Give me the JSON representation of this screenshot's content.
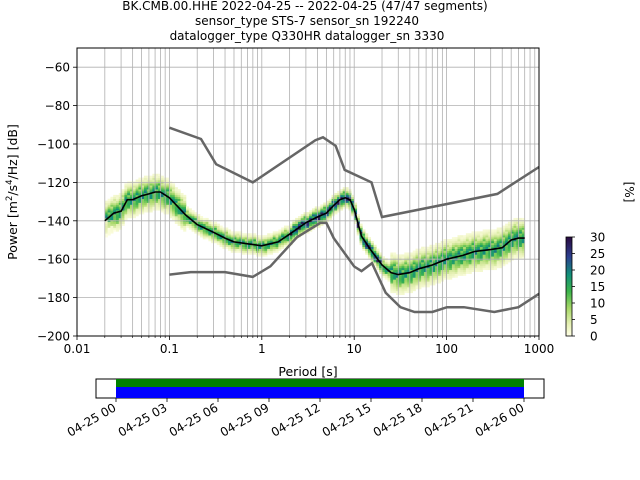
{
  "title_lines": [
    "BK.CMB.00.HHE   2022-04-25 -- 2022-04-25  (47/47 segments)",
    "sensor_type STS-7 sensor_sn 192240",
    "datalogger_type Q330HR datalogger_sn 3330"
  ],
  "chart_data": {
    "type": "line",
    "xscale": "log",
    "xlim": [
      0.01,
      1000
    ],
    "ylim": [
      -200,
      -50
    ],
    "xlabel": "Period [s]",
    "ylabel_parts": [
      "Power [m",
      "2",
      "/s",
      "4",
      "/Hz] [dB]"
    ],
    "xticks": [
      0.01,
      0.1,
      1,
      10,
      100,
      1000
    ],
    "xtick_labels": [
      "0.01",
      "0.1",
      "1",
      "10",
      "100",
      "1000"
    ],
    "yticks": [
      -200,
      -180,
      -160,
      -140,
      -120,
      -100,
      -80,
      -60
    ],
    "ytick_labels": [
      "−200",
      "−180",
      "−160",
      "−140",
      "−120",
      "−100",
      "−80",
      "−60"
    ],
    "grid": true,
    "nhnm": {
      "x": [
        0.1,
        0.22,
        0.32,
        0.8,
        3.8,
        4.6,
        6.3,
        7.9,
        15.4,
        20,
        354.8,
        1000
      ],
      "y": [
        -91.5,
        -97.4,
        -110.5,
        -120,
        -98,
        -96.5,
        -101,
        -113.5,
        -120,
        -138,
        -126,
        -112
      ]
    },
    "nlnm": {
      "x": [
        0.1,
        0.17,
        0.4,
        0.8,
        1.24,
        2.4,
        4.3,
        5,
        6,
        10,
        12,
        15.6,
        21.9,
        31.6,
        45,
        70,
        101,
        154,
        328,
        600,
        1000
      ],
      "y": [
        -168,
        -166.7,
        -166.7,
        -169.2,
        -163.7,
        -148.6,
        -141.1,
        -141.1,
        -149,
        -163.8,
        -166.2,
        -162.1,
        -177.5,
        -185,
        -187.5,
        -187.5,
        -185,
        -185,
        -187.5,
        -185,
        -178
      ]
    },
    "mode": {
      "x": [
        0.02,
        0.025,
        0.03,
        0.035,
        0.04,
        0.05,
        0.06,
        0.07,
        0.08,
        0.1,
        0.15,
        0.2,
        0.3,
        0.4,
        0.5,
        0.7,
        1,
        1.5,
        2,
        3,
        4,
        5,
        6,
        7,
        8,
        9,
        10,
        12,
        15,
        20,
        25,
        30,
        40,
        50,
        70,
        100,
        150,
        200,
        300,
        400,
        500,
        600,
        700
      ],
      "y": [
        -140,
        -136,
        -135,
        -129,
        -129,
        -127,
        -126,
        -125,
        -125,
        -128,
        -137,
        -142,
        -146,
        -149,
        -151,
        -152,
        -153,
        -151,
        -147,
        -141,
        -138,
        -136,
        -132,
        -129,
        -128,
        -129,
        -134,
        -148,
        -155,
        -163,
        -167,
        -168,
        -167,
        -165,
        -163,
        -160,
        -158,
        -156,
        -155,
        -154,
        -150,
        -149,
        -149
      ]
    },
    "colorbar": {
      "label": "[%]",
      "min": 0,
      "max": 30,
      "ticks": [
        "0",
        "5",
        "10",
        "15",
        "20",
        "25",
        "30"
      ]
    }
  },
  "timeline": {
    "tick_labels": [
      "04-25 00",
      "04-25 03",
      "04-25 06",
      "04-25 09",
      "04-25 12",
      "04-25 15",
      "04-25 18",
      "04-25 21",
      "04-26 00"
    ],
    "bar_colors": [
      "#008000",
      "#0000ff"
    ]
  }
}
